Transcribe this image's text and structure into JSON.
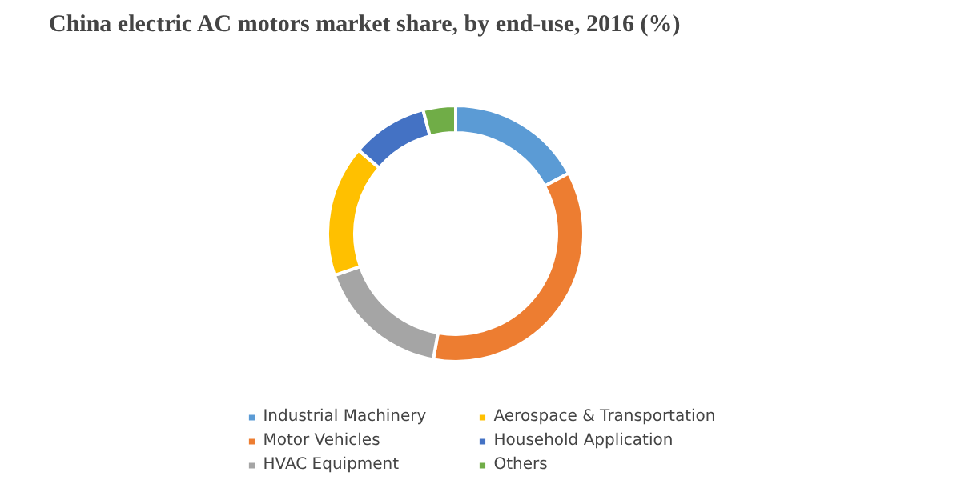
{
  "chart_data": {
    "type": "donut",
    "title": "China electric AC motors market share, by end-use, 2016 (%)",
    "categories": [
      "Industrial Machinery",
      "Motor Vehicles",
      "HVAC Equipment",
      "Aerospace & Transportation",
      "Household Application",
      "Others"
    ],
    "values": [
      17.2,
      35.6,
      16.9,
      16.6,
      9.6,
      4.1
    ],
    "colors": [
      "#5b9bd5",
      "#ed7d31",
      "#a5a5a5",
      "#ffc000",
      "#4472c4",
      "#70ad47"
    ],
    "legend": "bottom"
  }
}
